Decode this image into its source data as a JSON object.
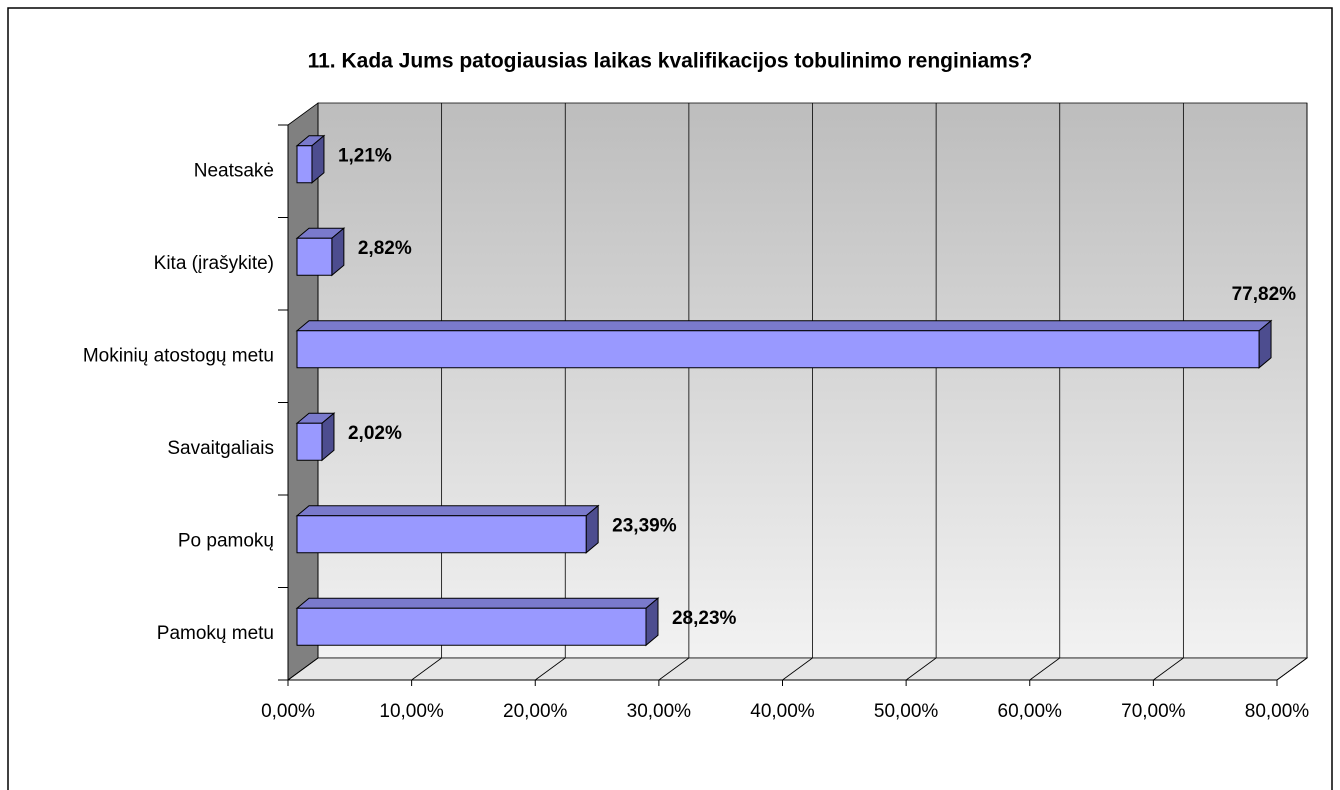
{
  "chart_data": {
    "type": "bar",
    "orientation": "horizontal",
    "title": "11. Kada Jums patogiausias laikas kvalifikacijos tobulinimo renginiams?",
    "categories": [
      "Pamokų metu",
      "Po pamokų",
      "Savaitgaliais",
      "Mokinių atostogų metu",
      "Kita (įrašykite)",
      "Neatsakė"
    ],
    "values": [
      28.23,
      23.39,
      2.02,
      77.82,
      2.82,
      1.21
    ],
    "value_labels": [
      "28,23%",
      "23,39%",
      "2,02%",
      "77,82%",
      "2,82%",
      "1,21%"
    ],
    "color": "#9999ff",
    "xlim": [
      0,
      80
    ],
    "xticks": [
      {
        "value": 0,
        "label": "0,00%"
      },
      {
        "value": 10,
        "label": "10,00%"
      },
      {
        "value": 20,
        "label": "20,00%"
      },
      {
        "value": 30,
        "label": "30,00%"
      },
      {
        "value": 40,
        "label": "40,00%"
      },
      {
        "value": 50,
        "label": "50,00%"
      },
      {
        "value": 60,
        "label": "60,00%"
      },
      {
        "value": 70,
        "label": "70,00%"
      },
      {
        "value": 80,
        "label": "80,00%"
      }
    ],
    "grid": true
  }
}
